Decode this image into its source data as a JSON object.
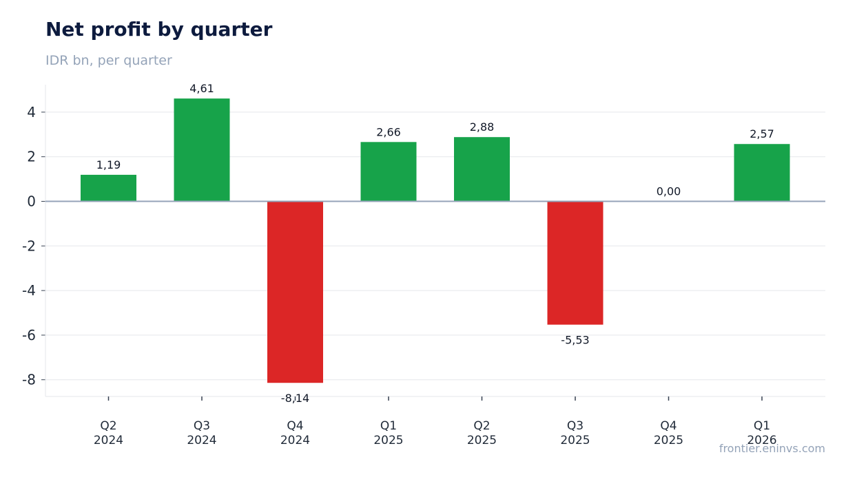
{
  "header": {
    "title": "Net profit by quarter",
    "subtitle": "IDR bn, per quarter"
  },
  "footer": {
    "watermark": "frontier.eninvs.com"
  },
  "chart_data": {
    "type": "bar",
    "title": "Net profit by quarter",
    "subtitle": "IDR bn, per quarter",
    "xlabel": "",
    "ylabel": "",
    "categories": [
      [
        "Q2",
        "2024"
      ],
      [
        "Q3",
        "2024"
      ],
      [
        "Q4",
        "2024"
      ],
      [
        "Q1",
        "2025"
      ],
      [
        "Q2",
        "2025"
      ],
      [
        "Q3",
        "2025"
      ],
      [
        "Q4",
        "2025"
      ],
      [
        "Q1",
        "2026"
      ]
    ],
    "values": [
      1.19,
      4.61,
      -8.14,
      2.66,
      2.88,
      -5.53,
      0.0,
      2.57
    ],
    "data_labels": [
      "1,19",
      "4,61",
      "-8,14",
      "2,66",
      "2,88",
      "-5,53",
      "0,00",
      "2,57"
    ],
    "yticks": [
      4,
      2,
      0,
      -2,
      -4,
      -6,
      -8
    ],
    "ytick_labels": [
      "4",
      "2",
      "0",
      "-2",
      "-4",
      "-6",
      "-8"
    ],
    "ylim": [
      -8.75,
      5.2
    ],
    "grid": true,
    "legend": "none",
    "colors": {
      "positive": "#17a34a",
      "negative": "#dc2626",
      "zero_line": "#94a3b8",
      "grid": "#e5e7eb"
    }
  }
}
